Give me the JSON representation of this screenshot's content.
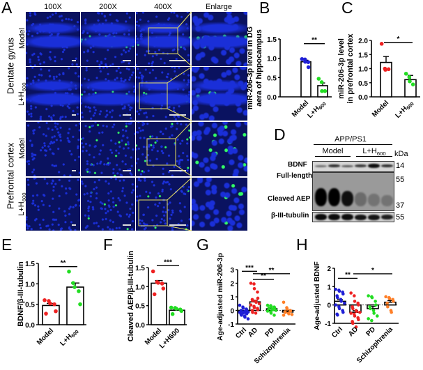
{
  "panel_letters": [
    "A",
    "B",
    "C",
    "D",
    "E",
    "F",
    "G",
    "H"
  ],
  "panel_a": {
    "columns": [
      "100X",
      "200X",
      "400X",
      "Enlarge"
    ],
    "regions": [
      "Dentate gyrus",
      "Prefrontal cortex"
    ],
    "rows": [
      "Model",
      "L+H600",
      "Model",
      "L+H600"
    ],
    "colors": {
      "nuclei": "#1a2fd8",
      "signal": "#33ff66",
      "inset_box": "#e8e060"
    }
  },
  "panel_d": {
    "group": "APP/PS1",
    "subgroups": [
      "Model",
      "L+H600"
    ],
    "unit": "kDa",
    "rows": [
      {
        "label": "BDNF",
        "kda": "14"
      },
      {
        "label": "Full-length",
        "kda": "55"
      },
      {
        "label": "Cleaved AEP",
        "kda": "37"
      },
      {
        "label": "β-III-tubulin",
        "kda": "55"
      }
    ]
  },
  "chart_data": [
    {
      "id": "B",
      "type": "bar",
      "ylabel": "miR-206-3p level in DG\naera of hippocampus",
      "categories": [
        "Model",
        "L+H600"
      ],
      "ylim": [
        0,
        1.5
      ],
      "ticks": [
        "0.0",
        "0.5",
        "1.0",
        "1.5"
      ],
      "colors": [
        "#1f1fd6",
        "#22dd22"
      ],
      "series": [
        {
          "mean": 0.91,
          "sem": 0.04,
          "points": [
            0.98,
            0.97,
            0.91,
            0.9,
            0.77
          ]
        },
        {
          "mean": 0.29,
          "sem": 0.07,
          "points": [
            0.47,
            0.38,
            0.15,
            0.15
          ]
        }
      ],
      "significance": [
        {
          "from": 0,
          "to": 1,
          "y": 1.38,
          "label": "**"
        }
      ]
    },
    {
      "id": "C",
      "type": "bar",
      "ylabel": "miR-206-3p level\nin prefrontal cortex",
      "categories": [
        "Model",
        "L+H600"
      ],
      "ylim": [
        0,
        2.0
      ],
      "ticks": [
        "0.0",
        "0.5",
        "1.0",
        "1.5",
        "2.0"
      ],
      "colors": [
        "#ee2222",
        "#22dd22"
      ],
      "series": [
        {
          "mean": 1.22,
          "sem": 0.21,
          "points": [
            1.88,
            1.0,
            0.96,
            0.98
          ]
        },
        {
          "mean": 0.61,
          "sem": 0.15,
          "points": [
            0.82,
            0.7,
            0.55,
            0.44
          ]
        }
      ],
      "significance": [
        {
          "from": 0,
          "to": 1,
          "y": 1.92,
          "label": "*"
        }
      ]
    },
    {
      "id": "E",
      "type": "bar",
      "ylabel": "BDNF/β-III-tubulin",
      "categories": [
        "Model",
        "L+H600"
      ],
      "ylim": [
        0,
        1.5
      ],
      "ticks": [
        "0.0",
        "0.5",
        "1.0",
        "1.5"
      ],
      "colors": [
        "#ee2222",
        "#22dd22"
      ],
      "series": [
        {
          "mean": 0.47,
          "sem": 0.05,
          "points": [
            0.6,
            0.58,
            0.52,
            0.5,
            0.33,
            0.27
          ]
        },
        {
          "mean": 0.92,
          "sem": 0.1,
          "points": [
            1.3,
            1.02,
            0.92,
            0.82,
            0.5
          ]
        }
      ],
      "significance": [
        {
          "from": 0,
          "to": 1,
          "y": 1.42,
          "label": "**"
        }
      ]
    },
    {
      "id": "F",
      "type": "bar",
      "ylabel": "Cleaved AEP/β-III-tubulin",
      "categories": [
        "Model",
        "L+H600"
      ],
      "ylim": [
        0,
        1.5
      ],
      "ticks": [
        "0.0",
        "0.5",
        "1.0",
        "1.5"
      ],
      "colors": [
        "#ee2222",
        "#22dd22"
      ],
      "series": [
        {
          "mean": 1.09,
          "sem": 0.07,
          "points": [
            1.4,
            1.12,
            1.1,
            1.08,
            0.95,
            0.8
          ]
        },
        {
          "mean": 0.38,
          "sem": 0.03,
          "points": [
            0.45,
            0.44,
            0.42,
            0.4,
            0.36,
            0.28
          ]
        }
      ],
      "significance": [
        {
          "from": 0,
          "to": 1,
          "y": 1.55,
          "label": "***"
        }
      ]
    },
    {
      "id": "G",
      "type": "bar",
      "ylabel": "Age-adjusted miR-206-3p",
      "categories": [
        "Ctrl",
        "AD",
        "PD",
        "Schizophrenia"
      ],
      "ylim": [
        -1,
        3
      ],
      "ticks": [
        "-1",
        "0",
        "1",
        "2",
        "3"
      ],
      "reference_line": 0,
      "colors": [
        "#1f1fd6",
        "#ee2222",
        "#22dd22",
        "#ff7f27"
      ],
      "series": [
        {
          "mean": -0.12,
          "sem": 0.04,
          "points": [
            0.38,
            0.25,
            0.18,
            0.1,
            0.05,
            0.0,
            -0.05,
            -0.08,
            -0.1,
            -0.12,
            -0.15,
            -0.18,
            -0.2,
            -0.22,
            -0.25,
            -0.3,
            -0.35,
            -0.42,
            -0.5,
            -0.62
          ]
        },
        {
          "mean": 0.63,
          "sem": 0.12,
          "points": [
            2.0,
            1.95,
            1.6,
            1.35,
            0.9,
            0.8,
            0.72,
            0.68,
            0.6,
            0.5,
            0.4,
            0.3,
            0.2,
            0.15,
            0.05,
            0.0,
            -0.15,
            -0.2
          ]
        },
        {
          "mean": 0.12,
          "sem": 0.05,
          "points": [
            0.38,
            0.35,
            0.3,
            0.25,
            0.2,
            0.18,
            0.15,
            0.1,
            0.05,
            0.0,
            -0.05,
            -0.1,
            -0.2,
            -0.35
          ]
        },
        {
          "mean": -0.12,
          "sem": 0.07,
          "points": [
            0.6,
            0.2,
            0.1,
            0.0,
            -0.05,
            -0.1,
            -0.15,
            -0.2,
            -0.25,
            -0.3,
            -0.35
          ]
        }
      ],
      "significance": [
        {
          "from": 0,
          "to": 1,
          "y": 2.88,
          "label": "***"
        },
        {
          "from": 1,
          "to": 3,
          "y": 2.7,
          "label": "**"
        },
        {
          "from": 1,
          "to": 2,
          "y": 2.28,
          "label": "**"
        }
      ]
    },
    {
      "id": "H",
      "type": "bar",
      "ylabel": "Age-adjusted BDNF",
      "categories": [
        "Ctrl",
        "AD",
        "PD",
        "Schizophrenia"
      ],
      "ylim": [
        -1,
        2
      ],
      "ticks": [
        "-1",
        "0",
        "1",
        "2"
      ],
      "reference_line": 0,
      "colors": [
        "#1f1fd6",
        "#ee2222",
        "#22dd22",
        "#ff7f27"
      ],
      "series": [
        {
          "mean": 0.2,
          "sem": 0.09,
          "points": [
            0.85,
            0.8,
            0.75,
            0.7,
            0.6,
            0.5,
            0.4,
            0.3,
            0.2,
            0.1,
            0.0,
            -0.1,
            -0.2,
            -0.3,
            -0.4,
            -0.5,
            -0.55
          ]
        },
        {
          "mean": -0.4,
          "sem": 0.09,
          "points": [
            0.65,
            0.5,
            0.2,
            0.1,
            0.0,
            -0.1,
            -0.2,
            -0.3,
            -0.35,
            -0.4,
            -0.45,
            -0.5,
            -0.6,
            -0.7,
            -0.8,
            -0.9,
            -1.0,
            -1.2
          ]
        },
        {
          "mean": -0.2,
          "sem": 0.12,
          "points": [
            0.5,
            0.45,
            0.4,
            0.2,
            0.0,
            -0.1,
            -0.2,
            -0.3,
            -0.45,
            -0.6,
            -0.75,
            -0.85
          ]
        },
        {
          "mean": 0.15,
          "sem": 0.09,
          "points": [
            0.45,
            0.4,
            0.35,
            0.3,
            0.2,
            0.1,
            -0.1,
            -0.3,
            -0.4
          ]
        }
      ],
      "significance": [
        {
          "from": 0,
          "to": 1,
          "y": 1.45,
          "label": "**"
        },
        {
          "from": 1,
          "to": 3,
          "y": 1.7,
          "label": "*"
        }
      ]
    }
  ]
}
